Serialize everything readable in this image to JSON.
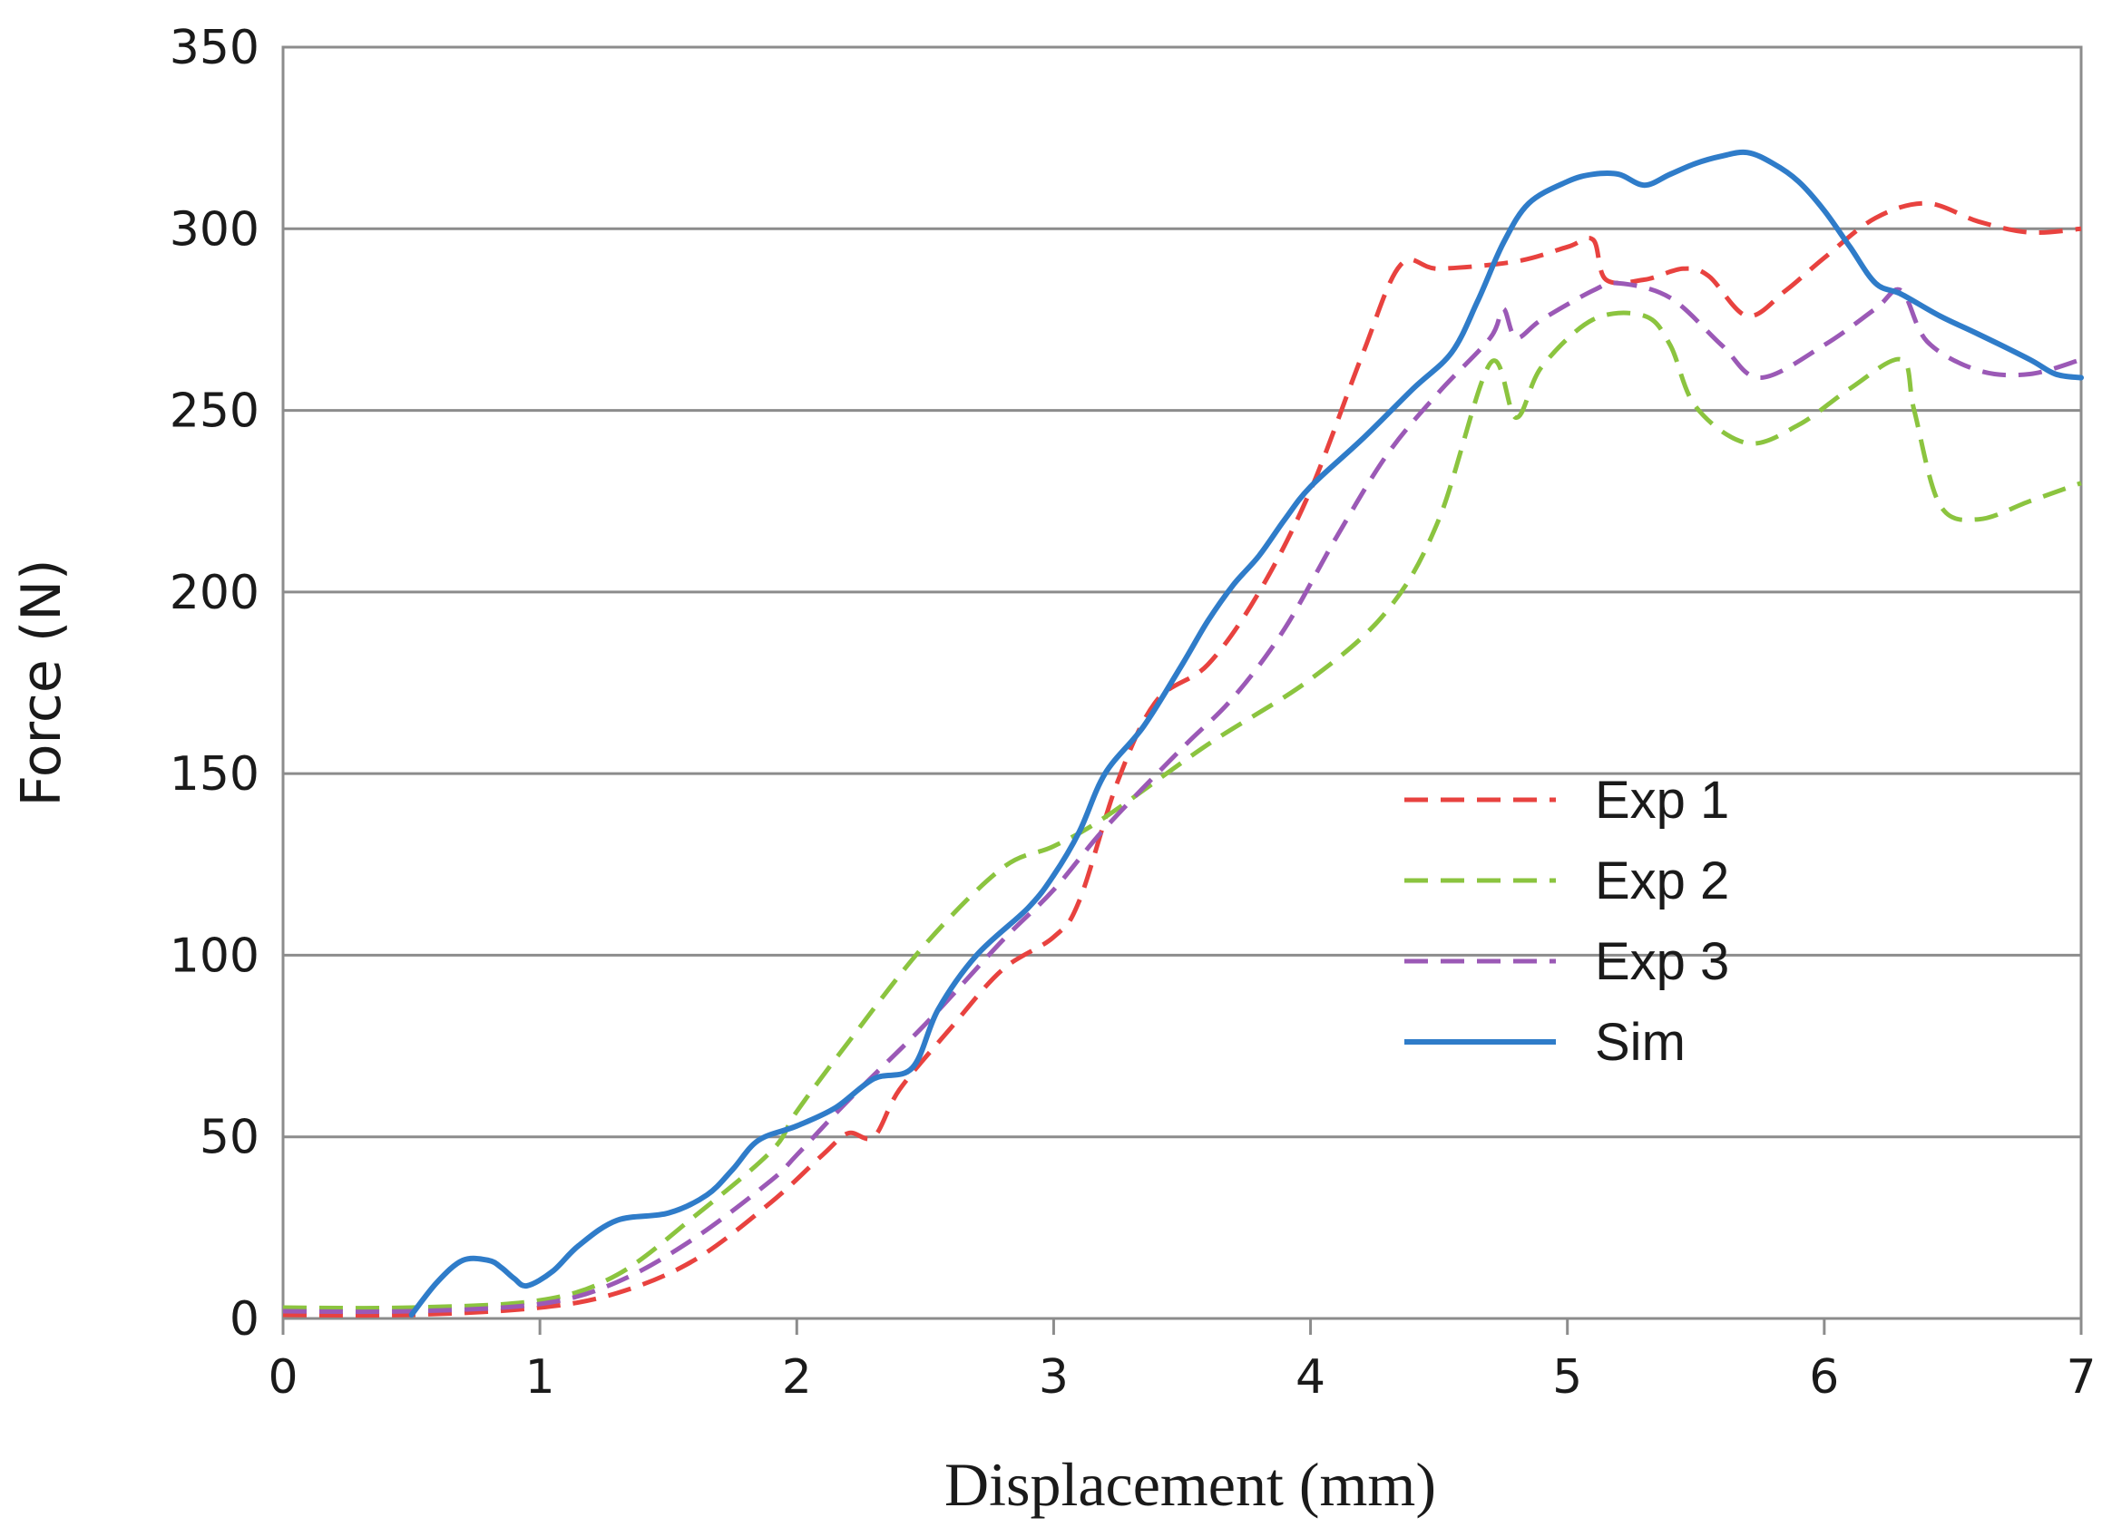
{
  "chart_data": {
    "type": "line",
    "title": "",
    "xlabel": "Displacement (mm)",
    "ylabel": "Force (N)",
    "xlim": [
      0,
      7
    ],
    "ylim": [
      0,
      350
    ],
    "xticks": [
      0,
      1,
      2,
      3,
      4,
      5,
      6,
      7
    ],
    "yticks": [
      0,
      50,
      100,
      150,
      200,
      250,
      300,
      350
    ],
    "legend_position": "right-middle",
    "series": [
      {
        "name": "Exp 1",
        "color": "#e8423f",
        "dash": "dashed",
        "x": [
          0,
          0.5,
          1.0,
          1.3,
          1.6,
          1.9,
          2.1,
          2.2,
          2.3,
          2.4,
          2.6,
          2.8,
          3.0,
          3.1,
          3.25,
          3.4,
          3.6,
          3.8,
          4.0,
          4.2,
          4.35,
          4.5,
          4.8,
          5.0,
          5.1,
          5.15,
          5.3,
          5.45,
          5.55,
          5.7,
          5.85,
          6.0,
          6.2,
          6.4,
          6.6,
          6.8,
          7.0
        ],
        "y": [
          1,
          1,
          3,
          7,
          16,
          32,
          45,
          51,
          50,
          63,
          80,
          96,
          105,
          115,
          148,
          170,
          180,
          200,
          228,
          265,
          290,
          289,
          291,
          295,
          297,
          286,
          286,
          289,
          287,
          276,
          283,
          292,
          303,
          307,
          302,
          299,
          300
        ]
      },
      {
        "name": "Exp 2",
        "color": "#8bc43f",
        "dash": "dashed",
        "x": [
          0,
          0.5,
          1.0,
          1.3,
          1.6,
          1.9,
          2.0,
          2.2,
          2.5,
          2.8,
          3.0,
          3.2,
          3.6,
          4.0,
          4.3,
          4.5,
          4.7,
          4.8,
          4.9,
          5.1,
          5.3,
          5.4,
          5.5,
          5.7,
          5.9,
          6.1,
          6.3,
          6.35,
          6.45,
          6.6,
          6.8,
          7.0
        ],
        "y": [
          3,
          3,
          5,
          12,
          28,
          46,
          57,
          76,
          103,
          124,
          130,
          138,
          158,
          176,
          195,
          220,
          263,
          248,
          262,
          275,
          276,
          268,
          251,
          241,
          246,
          256,
          264,
          250,
          224,
          220,
          225,
          230
        ]
      },
      {
        "name": "Exp 3",
        "color": "#9b59b6",
        "dash": "dashed",
        "x": [
          0,
          0.5,
          1.0,
          1.3,
          1.6,
          1.9,
          2.0,
          2.2,
          2.5,
          2.8,
          3.0,
          3.2,
          3.5,
          3.7,
          3.9,
          4.1,
          4.3,
          4.5,
          4.7,
          4.75,
          4.8,
          4.9,
          5.1,
          5.2,
          5.4,
          5.6,
          5.75,
          6.0,
          6.2,
          6.3,
          6.4,
          6.6,
          6.8,
          7.0
        ],
        "y": [
          2,
          2,
          4,
          10,
          22,
          38,
          45,
          60,
          81,
          104,
          118,
          135,
          157,
          171,
          190,
          215,
          238,
          255,
          270,
          278,
          270,
          275,
          283,
          285,
          281,
          268,
          259,
          268,
          278,
          283,
          269,
          261,
          260,
          264
        ]
      },
      {
        "name": "Sim",
        "color": "#2f7cc9",
        "dash": "solid",
        "x": [
          0.5,
          0.6,
          0.7,
          0.8,
          0.85,
          0.9,
          0.95,
          1.05,
          1.15,
          1.3,
          1.5,
          1.65,
          1.75,
          1.85,
          2.0,
          2.15,
          2.3,
          2.45,
          2.55,
          2.7,
          2.9,
          3.0,
          3.1,
          3.2,
          3.35,
          3.5,
          3.6,
          3.7,
          3.8,
          3.9,
          4.0,
          4.2,
          4.4,
          4.55,
          4.65,
          4.75,
          4.85,
          5.0,
          5.1,
          5.2,
          5.3,
          5.4,
          5.5,
          5.6,
          5.7,
          5.8,
          5.9,
          6.0,
          6.1,
          6.2,
          6.3,
          6.45,
          6.6,
          6.8,
          6.9,
          7.0
        ],
        "y": [
          1,
          10,
          16,
          16,
          14,
          11,
          9,
          13,
          20,
          27,
          29,
          34,
          41,
          49,
          53,
          58,
          66,
          69,
          85,
          100,
          113,
          122,
          134,
          150,
          163,
          180,
          192,
          202,
          210,
          220,
          229,
          242,
          256,
          266,
          280,
          296,
          307,
          313,
          315,
          315,
          312,
          315,
          318,
          320,
          321,
          318,
          313,
          305,
          295,
          285,
          282,
          276,
          271,
          264,
          260,
          259
        ]
      }
    ]
  }
}
